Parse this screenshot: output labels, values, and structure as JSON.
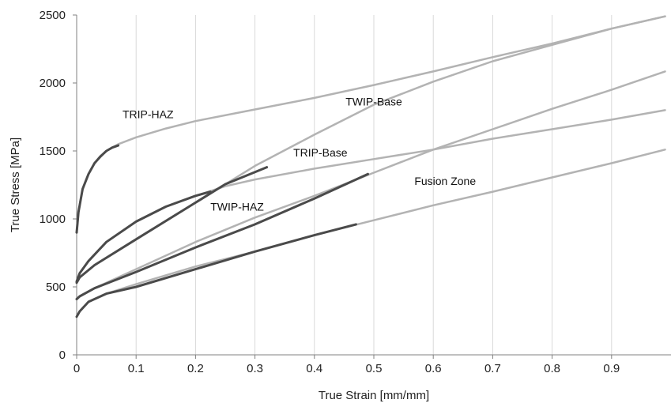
{
  "chart_data": {
    "type": "line",
    "xlabel": "True Strain [mm/mm]",
    "ylabel": "True Stress [MPa]",
    "xlim": [
      0,
      1.0
    ],
    "ylim": [
      0,
      2500
    ],
    "x_ticks": [
      "0",
      "0.1",
      "0.2",
      "0.3",
      "0.4",
      "0.5",
      "0.6",
      "0.7",
      "0.8",
      "0.9"
    ],
    "y_ticks": [
      "0",
      "500",
      "1000",
      "1500",
      "2000",
      "2500"
    ],
    "grid": "vertical",
    "legend": "none",
    "colors": {
      "fitted": "#b3b3b3",
      "measured": "#4a4a4a"
    },
    "curve_labels": [
      {
        "text": "TRIP-HAZ",
        "x": 0.12,
        "y": 1740
      },
      {
        "text": "TWIP-Base",
        "x": 0.5,
        "y": 1835
      },
      {
        "text": "TRIP-Base",
        "x": 0.41,
        "y": 1460
      },
      {
        "text": "TWIP-HAZ",
        "x": 0.27,
        "y": 1060
      },
      {
        "text": "Fusion Zone",
        "x": 0.62,
        "y": 1250
      }
    ],
    "series": [
      {
        "style": "fitted",
        "x": [
          0,
          0.003,
          0.01,
          0.02,
          0.03,
          0.05,
          0.07,
          0.1,
          0.15,
          0.2,
          0.3,
          0.4,
          0.5,
          0.6,
          0.7,
          0.8,
          0.9,
          0.99
        ],
        "y": [
          900,
          1050,
          1220,
          1330,
          1410,
          1500,
          1550,
          1600,
          1665,
          1720,
          1805,
          1890,
          1985,
          2085,
          2190,
          2290,
          2400,
          2490
        ]
      },
      {
        "style": "measured",
        "x": [
          0,
          0.003,
          0.01,
          0.02,
          0.03,
          0.04,
          0.05,
          0.06,
          0.07
        ],
        "y": [
          900,
          1050,
          1220,
          1330,
          1410,
          1460,
          1500,
          1525,
          1540
        ]
      },
      {
        "style": "fitted",
        "x": [
          0,
          0.005,
          0.03,
          0.1,
          0.2,
          0.3,
          0.4,
          0.5,
          0.6,
          0.7,
          0.8,
          0.9,
          0.99
        ],
        "y": [
          530,
          570,
          660,
          850,
          1120,
          1390,
          1620,
          1840,
          2010,
          2160,
          2280,
          2400,
          2490
        ]
      },
      {
        "style": "measured",
        "x": [
          0,
          0.005,
          0.03,
          0.1,
          0.2,
          0.25,
          0.32
        ],
        "y": [
          530,
          570,
          660,
          850,
          1120,
          1255,
          1380
        ]
      },
      {
        "style": "fitted",
        "x": [
          0,
          0.005,
          0.02,
          0.05,
          0.1,
          0.15,
          0.2,
          0.25,
          0.3,
          0.4,
          0.5,
          0.6,
          0.7,
          0.8,
          0.9,
          0.99
        ],
        "y": [
          540,
          600,
          690,
          830,
          980,
          1090,
          1170,
          1240,
          1290,
          1370,
          1440,
          1510,
          1590,
          1660,
          1730,
          1800
        ]
      },
      {
        "style": "measured",
        "x": [
          0,
          0.005,
          0.02,
          0.05,
          0.1,
          0.15,
          0.2,
          0.225
        ],
        "y": [
          540,
          600,
          690,
          830,
          980,
          1090,
          1170,
          1200
        ]
      },
      {
        "style": "fitted",
        "x": [
          0,
          0.005,
          0.03,
          0.1,
          0.2,
          0.3,
          0.4,
          0.5,
          0.6,
          0.7,
          0.8,
          0.9,
          0.99
        ],
        "y": [
          410,
          430,
          490,
          630,
          830,
          1010,
          1170,
          1340,
          1510,
          1660,
          1810,
          1950,
          2085
        ]
      },
      {
        "style": "measured",
        "x": [
          0,
          0.005,
          0.03,
          0.1,
          0.2,
          0.3,
          0.4,
          0.49
        ],
        "y": [
          410,
          430,
          490,
          610,
          790,
          960,
          1150,
          1330
        ]
      },
      {
        "style": "fitted",
        "x": [
          0,
          0.005,
          0.02,
          0.05,
          0.1,
          0.2,
          0.3,
          0.4,
          0.5,
          0.6,
          0.7,
          0.8,
          0.9,
          0.99
        ],
        "y": [
          280,
          320,
          390,
          450,
          520,
          650,
          760,
          880,
          990,
          1100,
          1200,
          1305,
          1410,
          1510
        ]
      },
      {
        "style": "measured",
        "x": [
          0,
          0.005,
          0.02,
          0.05,
          0.1,
          0.2,
          0.3,
          0.4,
          0.47
        ],
        "y": [
          280,
          320,
          390,
          450,
          500,
          630,
          760,
          880,
          960
        ]
      }
    ]
  }
}
